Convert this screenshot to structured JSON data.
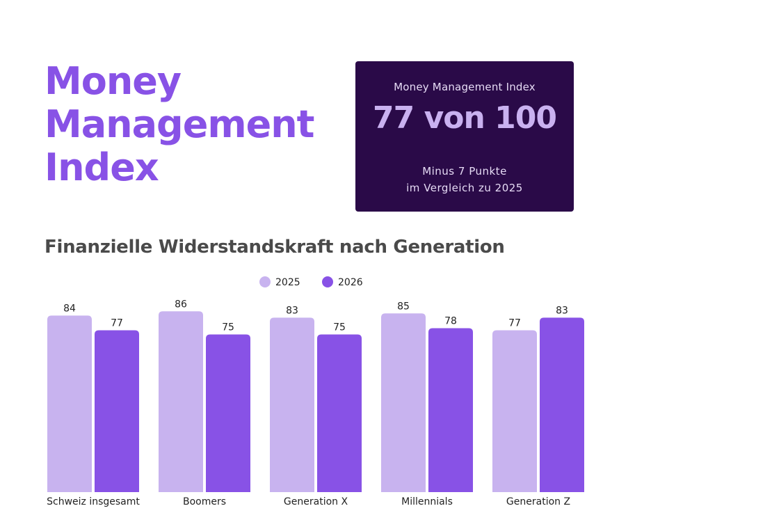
{
  "title_lines": [
    "Money",
    "Management",
    "Index"
  ],
  "index_card": {
    "label": "Money Management Index",
    "score": "77 von 100",
    "change_line1": "Minus 7 Punkte",
    "change_line2": "im Vergleich zu 2025"
  },
  "colors": {
    "title": "#8852e6",
    "card_bg": "#2a0a48",
    "card_label": "#e6dbf5",
    "card_score": "#c9b1f0",
    "chart_title": "#4a4a4a",
    "series_2025": "#c8b3ef",
    "series_2026": "#8852e6",
    "text": "#222222"
  },
  "chart_data": {
    "type": "bar",
    "title": "Finanzielle Widerstandskraft nach Generation",
    "categories": [
      "Schweiz insgesamt",
      "Boomers",
      "Generation X",
      "Millennials",
      "Generation Z"
    ],
    "series": [
      {
        "name": "2025",
        "values": [
          84,
          86,
          83,
          85,
          77
        ]
      },
      {
        "name": "2026",
        "values": [
          77,
          75,
          75,
          78,
          83
        ]
      }
    ],
    "legend": "top-center",
    "grid": false,
    "ylim": [
      0,
      100
    ]
  }
}
